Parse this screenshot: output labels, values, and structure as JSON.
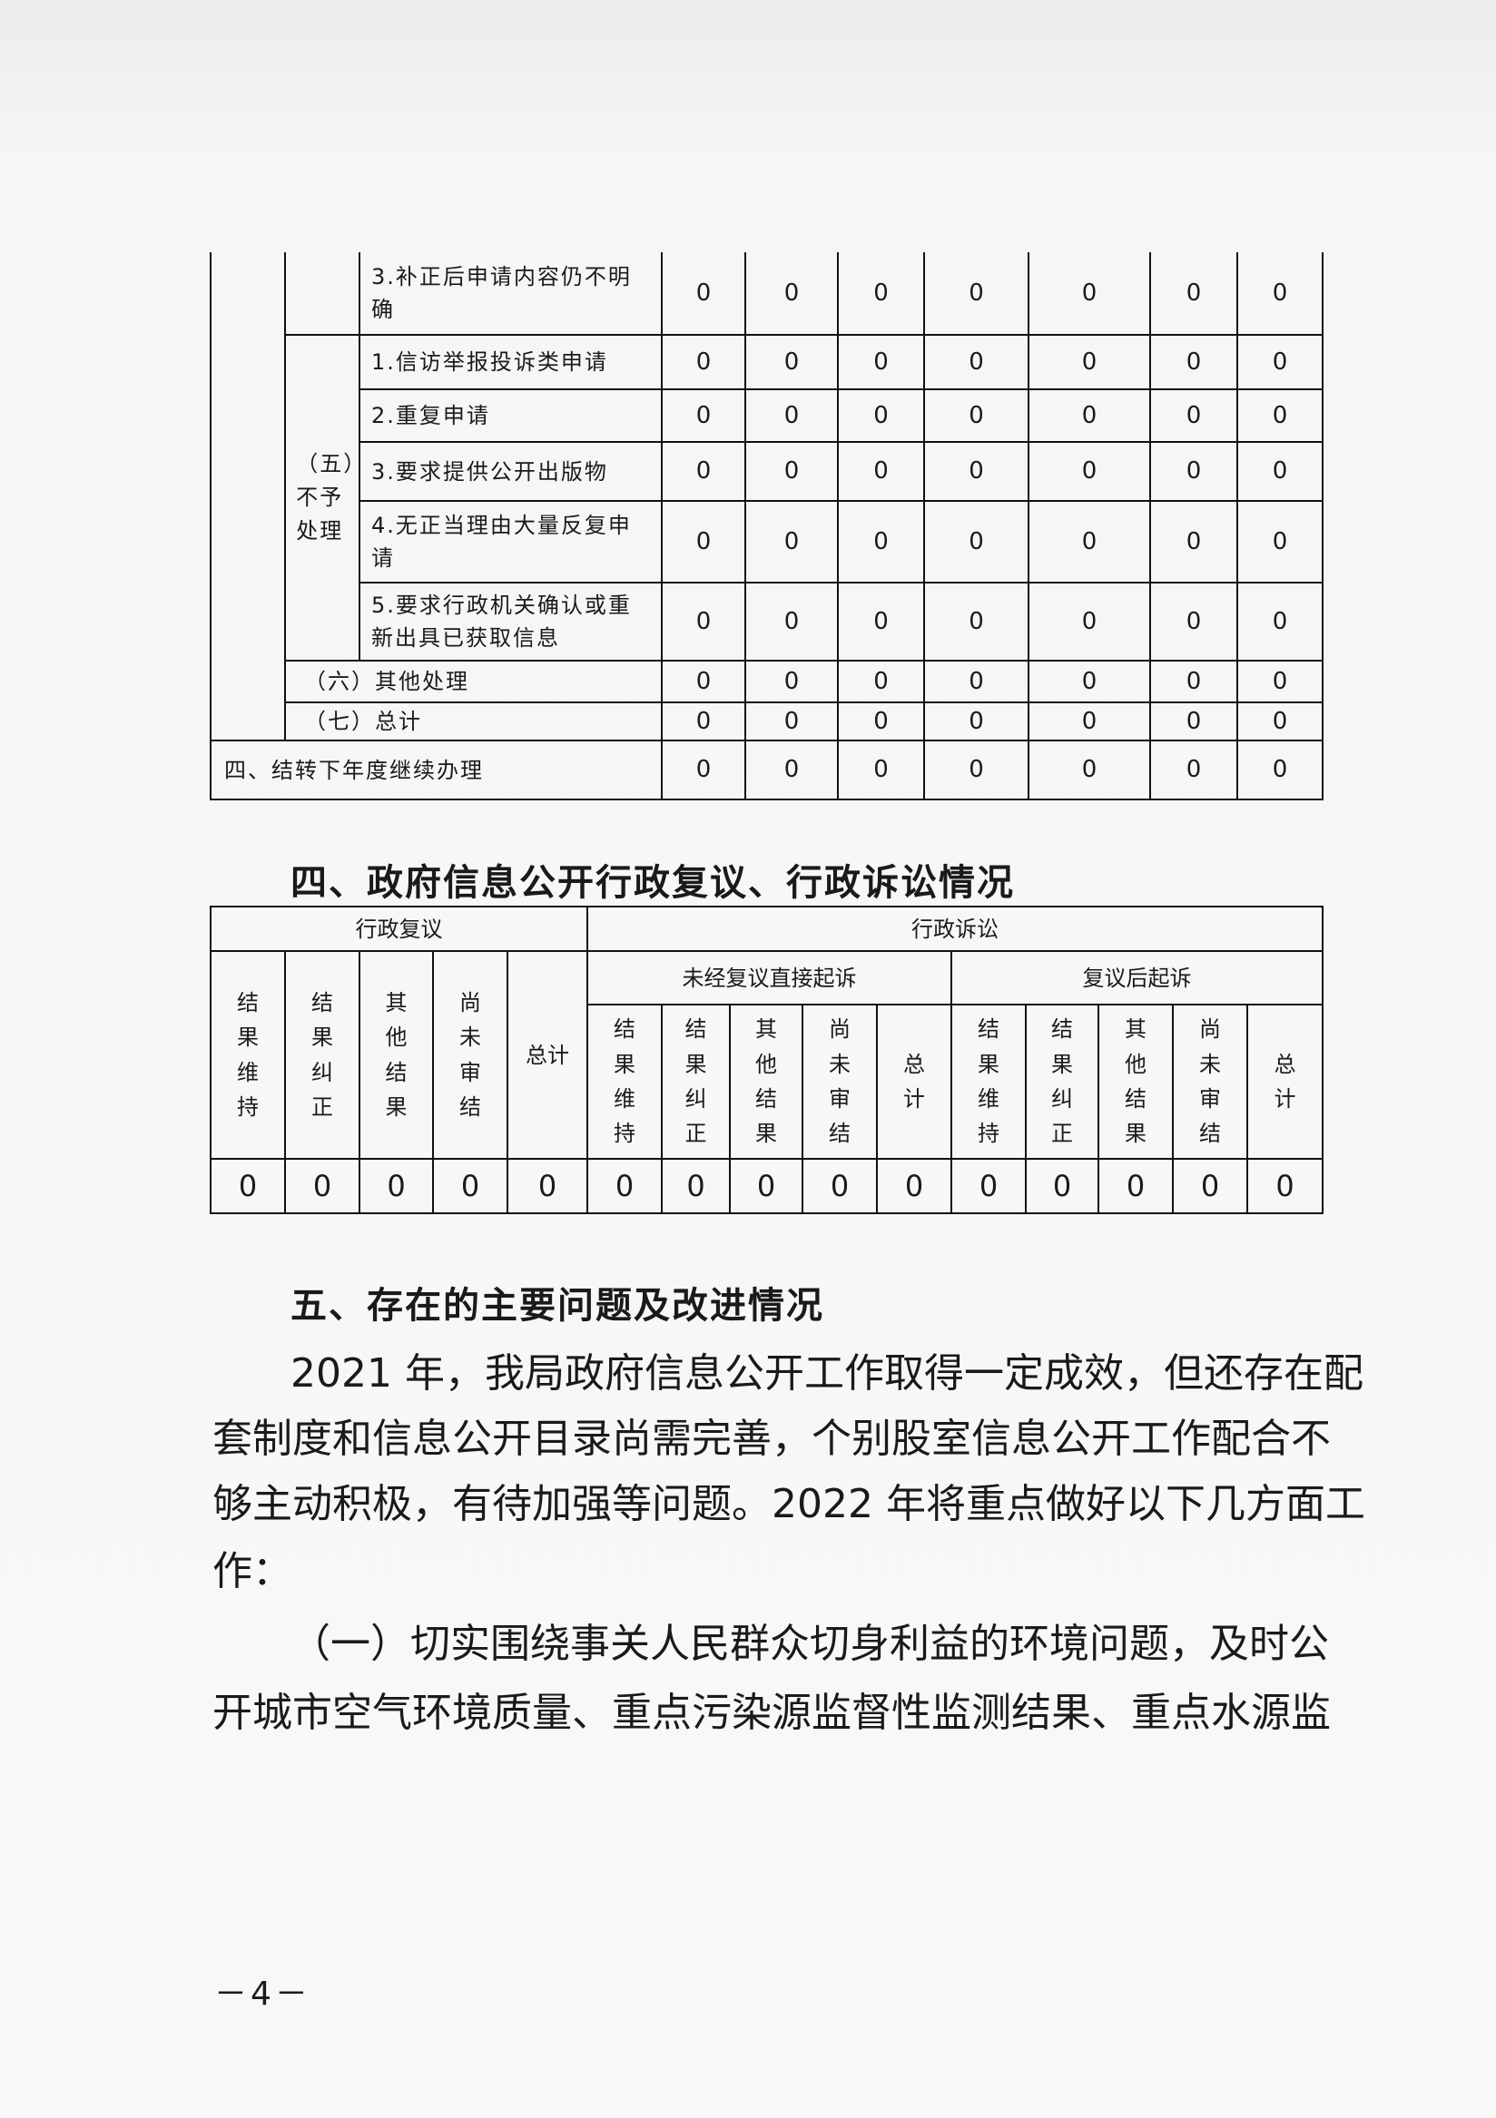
{
  "table3": {
    "row_incomplete": {
      "label": "3.补正后申请内容仍不明确",
      "values": [
        "0",
        "0",
        "0",
        "0",
        "0",
        "0",
        "0"
      ]
    },
    "group5_label": "（五）不予处理",
    "group5_rows": [
      {
        "label": "1.信访举报投诉类申请",
        "values": [
          "0",
          "0",
          "0",
          "0",
          "0",
          "0",
          "0"
        ]
      },
      {
        "label": "2.重复申请",
        "values": [
          "0",
          "0",
          "0",
          "0",
          "0",
          "0",
          "0"
        ]
      },
      {
        "label": "3.要求提供公开出版物",
        "values": [
          "0",
          "0",
          "0",
          "0",
          "0",
          "0",
          "0"
        ]
      },
      {
        "label": "4.无正当理由大量反复申请",
        "values": [
          "0",
          "0",
          "0",
          "0",
          "0",
          "0",
          "0"
        ]
      },
      {
        "label": "5.要求行政机关确认或重新出具已获取信息",
        "values": [
          "0",
          "0",
          "0",
          "0",
          "0",
          "0",
          "0"
        ]
      }
    ],
    "other": {
      "label": "（六）其他处理",
      "values": [
        "0",
        "0",
        "0",
        "0",
        "0",
        "0",
        "0"
      ]
    },
    "total": {
      "label": "（七）总计",
      "values": [
        "0",
        "0",
        "0",
        "0",
        "0",
        "0",
        "0"
      ]
    },
    "carry": {
      "label": "四、结转下年度继续办理",
      "values": [
        "0",
        "0",
        "0",
        "0",
        "0",
        "0",
        "0"
      ]
    }
  },
  "section4": {
    "heading": "四、政府信息公开行政复议、行政诉讼情况",
    "review_header": "行政复议",
    "litigation_header": "行政诉讼",
    "direct_header": "未经复议直接起诉",
    "after_review_header": "复议后起诉",
    "columns": [
      "结果维持",
      "结果纠正",
      "其他结果",
      "尚未审结",
      "总计"
    ],
    "values": [
      "0",
      "0",
      "0",
      "0",
      "0",
      "0",
      "0",
      "0",
      "0",
      "0",
      "0",
      "0",
      "0",
      "0",
      "0"
    ]
  },
  "section5": {
    "heading": "五、存在的主要问题及改进情况",
    "paragraphs": [
      [
        "2021 年，我局政府信息公开工作取得一定成效，但还存在配",
        "套制度和信息公开目录尚需完善，个别股室信息公开工作配合不",
        "够主动积极，有待加强等问题。2022 年将重点做好以下几方面工",
        "作："
      ],
      [
        "（一）切实围绕事关人民群众切身利益的环境问题，及时公",
        "开城市空气环境质量、重点污染源监督性监测结果、重点水源监"
      ]
    ]
  },
  "page_number": "－4－"
}
